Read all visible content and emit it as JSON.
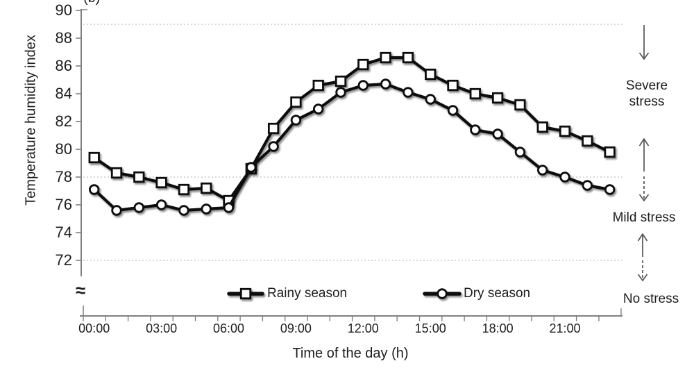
{
  "figure_label": "(b)",
  "chart_data": {
    "type": "line",
    "title": "",
    "xlabel": "Time of the day (h)",
    "ylabel": "Temperature humidity index",
    "x_hours": [
      0,
      1,
      2,
      3,
      4,
      5,
      6,
      7,
      8,
      9,
      10,
      11,
      12,
      13,
      14,
      15,
      16,
      17,
      18,
      19,
      20,
      21,
      22,
      23
    ],
    "x_tick_label_hours": [
      0,
      3,
      6,
      9,
      12,
      15,
      18,
      21
    ],
    "x_tick_labels": [
      "00:00",
      "03:00",
      "06:00",
      "09:00",
      "12:00",
      "15:00",
      "18:00",
      "21:00"
    ],
    "y_ticks": [
      90,
      88,
      86,
      84,
      82,
      80,
      78,
      76,
      74,
      72
    ],
    "ylim": [
      72,
      90
    ],
    "y_axis_break": "≈",
    "reference_lines": [
      89,
      78,
      72
    ],
    "grid": "dotted horizontal reference lines only",
    "legend_position": "inside-bottom",
    "series": [
      {
        "name": "Rainy season",
        "marker": "square",
        "color": "#111111",
        "values": [
          79.4,
          78.3,
          78.0,
          77.6,
          77.1,
          77.2,
          76.3,
          78.6,
          81.5,
          83.4,
          84.6,
          84.9,
          86.1,
          86.6,
          86.6,
          85.4,
          84.6,
          84.0,
          83.7,
          83.2,
          81.6,
          81.3,
          80.6,
          79.8
        ]
      },
      {
        "name": "Dry season",
        "marker": "circle",
        "color": "#111111",
        "values": [
          77.1,
          75.6,
          75.8,
          76.0,
          75.6,
          75.7,
          75.8,
          78.7,
          80.2,
          82.1,
          82.9,
          84.1,
          84.6,
          84.7,
          84.1,
          83.6,
          82.8,
          81.4,
          81.1,
          79.8,
          78.5,
          78.0,
          77.4,
          77.1
        ]
      }
    ]
  },
  "annotations": [
    {
      "label": "Severe stress",
      "arrow": "down"
    },
    {
      "label": "Mild stress",
      "arrow": "up-down"
    },
    {
      "label": "No stress",
      "arrow": "up-down"
    }
  ],
  "colors": {
    "series": "#111111",
    "axis": "#808080",
    "text": "#1d1d1f",
    "reference_line": "#c0c0c0",
    "arrow": "#555555",
    "marker_fill": "#ffffff",
    "background": "#ffffff"
  }
}
